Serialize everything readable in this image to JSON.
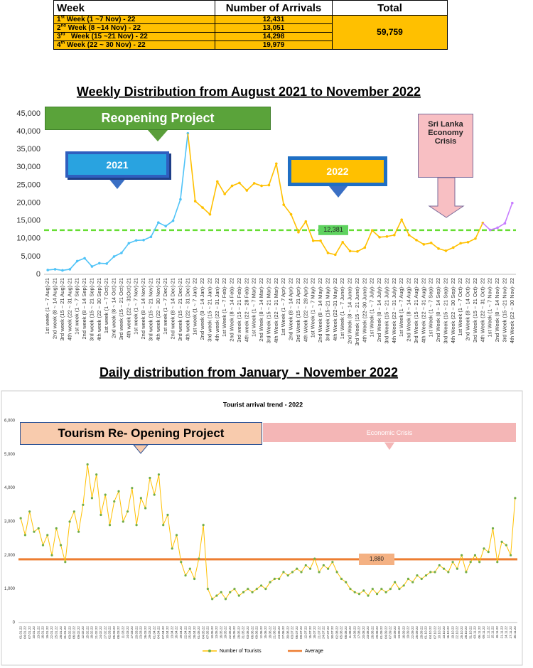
{
  "table": {
    "header": [
      "Week",
      "Number of Arrivals",
      "Total"
    ],
    "rows": [
      {
        "week": {
          "num": "1",
          "sup": "st",
          "text": "Week (1 ~7 Nov) - 22"
        },
        "arrivals": "12,431"
      },
      {
        "week": {
          "num": "2",
          "sup": "nd",
          "text": "Week (8 ~14 Nov) - 22"
        },
        "arrivals": "13,051"
      },
      {
        "week": {
          "num": "3",
          "sup": "rd",
          "text": "Week (15 ~21 Nov) - 22"
        },
        "arrivals": "14,298"
      },
      {
        "week": {
          "num": "4",
          "sup": "th",
          "text": "Week (22 ~ 30 Nov) - 22"
        },
        "arrivals": "19,979"
      }
    ],
    "total": "59,759"
  },
  "chart_data": [
    {
      "type": "line",
      "title": "Weekly Distribution from August 2021 to November 2022",
      "categories": [
        "1st week (1 ~ 7 Aug)-21",
        "2nd week (8 ~ 14 Aug)-21",
        "3rd week (15 ~ 21 Aug)-21",
        "4th week (22 ~ 31 Aug)-21",
        "1st week (1 ~ 7 Sep)-21",
        "2nd week (8 ~ 14 Sep)-21",
        "3rd week (15 ~ 21 Sep)-21",
        "4th week (22 ~ 30 Sep)-21",
        "1st week (1 ~ 7 Oct)-21",
        "2nd week (8 ~ 14 Oct)-21",
        "3rd week (15 ~ 21 Oct)-21",
        "4th week (22 ~ 31Oct)-21",
        "1st week (1 ~ 7 Nov)-21",
        "2nd week (8 ~ 14 Nov)-21",
        "3rd week (15 ~ 21 Nov)-21",
        "4th week (22 ~ 30 Nov)-21",
        "1st week (1 ~ 7 Dec)-21",
        "2nd week (8 ~ 14 Dec)-21",
        "3rd week (15 ~ 21 Dec)-21",
        "4th week (22 ~ 31 Dec)-21",
        "1st week (1 ~ 7 Jan)- 22",
        "2nd week (8 ~ 14 Jan)- 22",
        "3rd week (15 ~ 21 Jan)- 22",
        "4th week (22 ~ 31 Jan)- 22",
        "1st Week (1 ~ 7 Feb)- 22",
        "2nd Week (8 ~ 14 Feb)- 22",
        "3rd week (15 ~ 21 Feb)- 22",
        "4th week (22 ~ 28 Feb)- 22",
        "1st Week (1 ~ 7 Mar)- 22",
        "2nd Week (8 ~ 14 Mar)- 22",
        "3rd Week (15 ~ 21 Mar)- 22",
        "4th Week (22 ~ 31 Mar)- 22",
        "1st Week (1 ~ 7 Apr)- 22",
        "2nd Week (8 ~ 14 Apr)- 22",
        "3rd Week (15 ~ 21 Apr)- 22",
        "4th Week (22 ~ 28 Apr)- 22",
        "1st Week (1 ~ 7 May)- 22",
        "2nd Week (8 ~ 14 May)- 22",
        "3rd Week (15~21 May)- 22",
        "4th Week (22~31 May)- 22",
        "1st Week (1 ~ 7 June)- 22",
        "2nd Week (8 ~ 14 June)- 22",
        "3rd Week (15 ~ 21 June)- 22",
        "4th Week (22~30 June)- 22",
        "1st Week (1 ~ 7 July)- 22",
        "2nd Week (8 ~ 14 July)- 22",
        "3rd Week (15 ~ 21 July)- 22",
        "4th Week (22 ~ 31 July)- 22",
        "1st Week (1 ~ 7 Aug)- 22",
        "2nd Week (8 ~ 14 Aug)- 22",
        "3rd Week (15 ~ 21 Aug)- 22",
        "4th Week (22 ~ 31 Aug)- 22",
        "1st Week (1 ~ 7 Sep)- 22",
        "2nd Week (8 ~ 14 Sep)- 22",
        "3rd Week (15 ~ 21 Sep)- 22",
        "4th Week (22 ~ 30 Sep)- 22",
        "1st Week (1 ~ 7 Oct)- 22",
        "2nd Week (8 ~ 14 Oct)- 22",
        "3rd Week (15 ~ 21 Oct)- 22",
        "4th Week (22 ~ 31 Oct)- 22",
        "1st Week (1 ~ 7 Nov)- 22",
        "2nd Week (8 ~ 14 Nov)- 22",
        "3rd  Week (15 ~21 Nov)- 22",
        "4th Week (22 ~ 30 Nov)- 22"
      ],
      "series": [
        {
          "color": "#4fc3f7",
          "values": [
            1200,
            1400,
            1100,
            1400,
            3700,
            4500,
            2200,
            3100,
            3000,
            5000,
            6000,
            8700,
            9500,
            9600,
            10500,
            14500,
            13500,
            15000,
            21000,
            39500,
            null,
            null,
            null,
            null,
            null,
            null,
            null,
            null,
            null,
            null,
            null,
            null,
            null,
            null,
            null,
            null,
            null,
            null,
            null,
            null,
            null,
            null,
            null,
            null,
            null,
            null,
            null,
            null,
            null,
            null,
            null,
            null,
            null,
            null,
            null,
            null,
            null,
            null,
            null,
            null,
            null,
            null,
            null,
            null
          ]
        },
        {
          "color": "#ffc000",
          "values": [
            null,
            null,
            null,
            null,
            null,
            null,
            null,
            null,
            null,
            null,
            null,
            null,
            null,
            null,
            null,
            null,
            null,
            null,
            null,
            null,
            20500,
            18700,
            16800,
            26000,
            22500,
            24800,
            25600,
            23500,
            25500,
            24800,
            25000,
            31000,
            19500,
            16800,
            11800,
            14800,
            9400,
            9400,
            6000,
            5500,
            9000,
            6500,
            6400,
            7500,
            12300,
            10400,
            10600,
            11000,
            15300,
            11000,
            9600,
            8400,
            8800,
            7200,
            6600,
            7500,
            8700,
            9000,
            10000,
            14400,
            null,
            null,
            null,
            null
          ]
        },
        {
          "color": "#c77dff",
          "values": [
            null,
            null,
            null,
            null,
            null,
            null,
            null,
            null,
            null,
            null,
            null,
            null,
            null,
            null,
            null,
            null,
            null,
            null,
            null,
            null,
            null,
            null,
            null,
            null,
            null,
            null,
            null,
            null,
            null,
            null,
            null,
            null,
            null,
            null,
            null,
            null,
            null,
            null,
            null,
            null,
            null,
            null,
            null,
            null,
            null,
            null,
            null,
            null,
            null,
            null,
            null,
            null,
            null,
            null,
            null,
            null,
            null,
            null,
            null,
            null,
            12431,
            13051,
            14298,
            19979
          ]
        }
      ],
      "average": {
        "value": 12381,
        "label": "12,381",
        "color": "#66dd33"
      },
      "ylim": [
        0,
        45000
      ],
      "yticks": [
        0,
        {
          "value": 5000,
          "label": "5,000"
        },
        {
          "value": 10000,
          "label": "10,000"
        },
        {
          "value": 15000,
          "label": "15,000"
        },
        {
          "value": 20000,
          "label": "20,000"
        },
        {
          "value": 25000,
          "label": "25,000"
        },
        {
          "value": 30000,
          "label": "30,000"
        },
        {
          "value": 35000,
          "label": "35,000"
        },
        {
          "value": 40000,
          "label": "40,000"
        },
        {
          "value": 45000,
          "label": "45,000"
        }
      ],
      "grid": false,
      "annotations": [
        "Reopening Project",
        "2021",
        "2022",
        "Sri Lanka Economy Crisis"
      ]
    },
    {
      "type": "line",
      "title": "Daily distribution from January  - November 2022",
      "subtitle": "Tourist arrival trend - 2022",
      "categories": [
        "01.01.22",
        "04.01.22",
        "07.01.22",
        "10.01.22",
        "13.01.22",
        "16.01.22",
        "19.01.22",
        "22.01.22",
        "25.01.22",
        "28.01.22",
        "31.01.22",
        "03.02.22",
        "06.02.22",
        "09.02.22",
        "12.02.22",
        "15.02.22",
        "18.02.22",
        "21.02.22",
        "24.02.22",
        "27.02.22",
        "02.03.22",
        "05.03.22",
        "08.03.22",
        "11.03.22",
        "14.03.22",
        "17.03.22",
        "20.03.22",
        "23.03.22",
        "26.03.22",
        "29.03.22",
        "01.04.22",
        "04.04.22",
        "07.04.22",
        "10.04.22",
        "13.04.22",
        "16.04.22",
        "19.04.22",
        "22.04.22",
        "25.04.22",
        "28.04.22",
        "01.05.22",
        "04.05.22",
        "07.05.22",
        "10.05.22",
        "13.05.22",
        "16.05.22",
        "19.05.22",
        "22.05.22",
        "25.05.22",
        "28.05.22",
        "31.05.22",
        "03.06.22",
        "06.06.22",
        "09.06.22",
        "12.06.22",
        "15.06.22",
        "18.06.22",
        "21.06.22",
        "24.06.22",
        "27.06.22",
        "30.06.22",
        "03.07.22",
        "06.07.22",
        "09.07.22",
        "12.07.22",
        "15.07.22",
        "18.07.22",
        "21.07.22",
        "24.07.22",
        "27.07.22",
        "30.07.22",
        "02.08.22",
        "05.08.22",
        "08.08.22",
        "11.08.22",
        "14.08.22",
        "17.08.22",
        "20.08.22",
        "23.08.22",
        "26.08.22",
        "29.08.22",
        "01.09.22",
        "04.09.22",
        "07.09.22",
        "10.09.22",
        "13.09.22",
        "16.09.22",
        "19.09.22",
        "22.09.22",
        "25.09.22",
        "28.09.22",
        "01.10.22",
        "04.10.22",
        "07.10.22",
        "10.10.22",
        "13.10.22",
        "16.10.22",
        "19.10.22",
        "22.10.22",
        "25.10.22",
        "28.10.22",
        "31.10.22",
        "03.11.22",
        "06.11.22",
        "09.11.22",
        "12.11.22",
        "15.11.22",
        "18.11.22",
        "21.11.22",
        "24.11.22",
        "27.11.22",
        "30.11.22"
      ],
      "series": [
        {
          "name": "Number of Tourists",
          "color": "#ffc000",
          "marker_color": "#70ad47",
          "values": [
            3100,
            2600,
            3300,
            2700,
            2800,
            2300,
            2600,
            2000,
            2800,
            2300,
            1800,
            3000,
            3300,
            2700,
            3500,
            4700,
            3700,
            4400,
            3200,
            3800,
            2900,
            3600,
            3900,
            3000,
            3300,
            4000,
            2900,
            3700,
            3400,
            4300,
            3800,
            4400,
            2900,
            3200,
            2200,
            2600,
            1800,
            1400,
            1600,
            1300,
            1900,
            2900,
            1000,
            700,
            800,
            900,
            700,
            900,
            1000,
            800,
            900,
            1000,
            900,
            1000,
            1100,
            1000,
            1200,
            1300,
            1300,
            1500,
            1400,
            1500,
            1600,
            1500,
            1700,
            1600,
            1900,
            1500,
            1700,
            1600,
            1800,
            1500,
            1300,
            1200,
            1000,
            900,
            850,
            950,
            800,
            1000,
            850,
            1000,
            900,
            1000,
            1200,
            1000,
            1100,
            1300,
            1200,
            1400,
            1300,
            1400,
            1500,
            1500,
            1700,
            1600,
            1500,
            1800,
            1600,
            2000,
            1500,
            1800,
            2000,
            1800,
            2200,
            2100,
            2800,
            1800,
            2400,
            2300,
            2000,
            3700
          ]
        }
      ],
      "average": {
        "name": "Average",
        "value": 1880,
        "label": "1,880",
        "color": "#ed7d31"
      },
      "ylim": [
        0,
        6000
      ],
      "yticks": [
        0,
        {
          "value": 1000,
          "label": "1,000"
        },
        {
          "value": 2000,
          "label": "2,000"
        },
        {
          "value": 3000,
          "label": "3,000"
        },
        {
          "value": 4000,
          "label": "4,000"
        },
        {
          "value": 5000,
          "label": "5,000"
        },
        {
          "value": 6000,
          "label": "6,000"
        }
      ],
      "grid": false,
      "annotations": [
        "Tourism Re- Opening Project",
        "Economic Crisis"
      ]
    }
  ]
}
